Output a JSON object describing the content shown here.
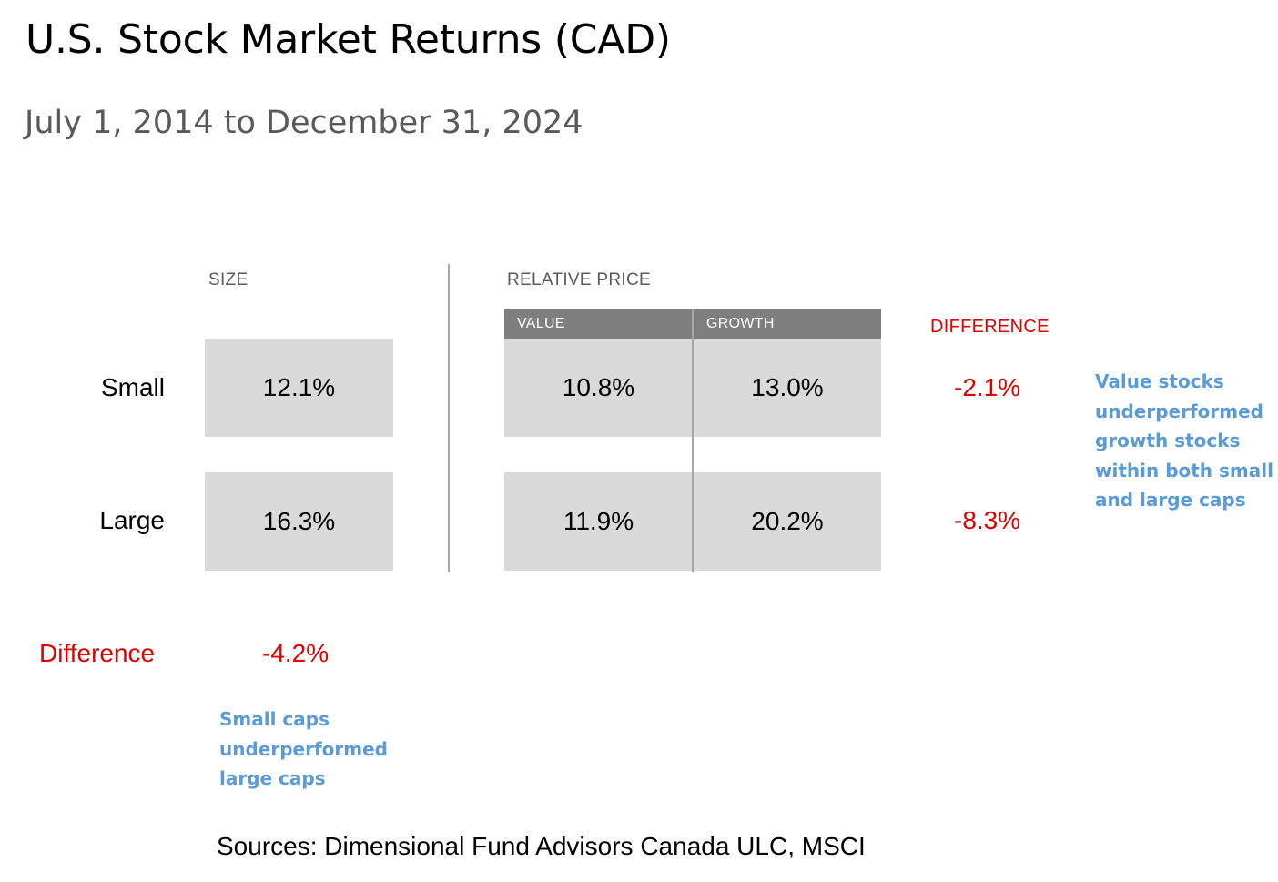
{
  "title": "U.S. Stock Market Returns (CAD)",
  "subtitle": "July 1, 2014 to December 31, 2024",
  "size_header": "SIZE",
  "relative_price_header": "RELATIVE PRICE",
  "columns": {
    "value": "VALUE",
    "growth": "GROWTH"
  },
  "difference_header": "DIFFERENCE",
  "rows": {
    "small": {
      "label": "Small",
      "size": "12.1%",
      "value": "10.8%",
      "growth": "13.0%",
      "difference": "-2.1%"
    },
    "large": {
      "label": "Large",
      "size": "16.3%",
      "value": "11.9%",
      "growth": "20.2%",
      "difference": "-8.3%"
    }
  },
  "size_difference": {
    "label": "Difference",
    "value": "-4.2%"
  },
  "notes": {
    "value_growth": [
      "Value stocks",
      "underperformed",
      "growth stocks",
      "within both small",
      "and large caps"
    ],
    "size": [
      "Small caps",
      "underperformed",
      "large caps"
    ]
  },
  "sources": "Sources: Dimensional Fund Advisors Canada ULC, MSCI",
  "colors": {
    "header_fill": "#7f7f7f",
    "cell_fill": "#d9d9d9",
    "difference": "#e00000",
    "note": "#5b9bd5",
    "subtitle": "#595959"
  },
  "chart_data": {
    "type": "table",
    "title": "U.S. Stock Market Returns (CAD)",
    "subtitle": "July 1, 2014 to December 31, 2024",
    "rows": [
      "Small",
      "Large"
    ],
    "columns": [
      "SIZE",
      "VALUE",
      "GROWTH",
      "DIFFERENCE"
    ],
    "values": [
      [
        12.1,
        10.8,
        13.0,
        -2.1
      ],
      [
        16.3,
        11.9,
        20.2,
        -8.3
      ]
    ],
    "size_difference": -4.2,
    "unit": "%"
  }
}
